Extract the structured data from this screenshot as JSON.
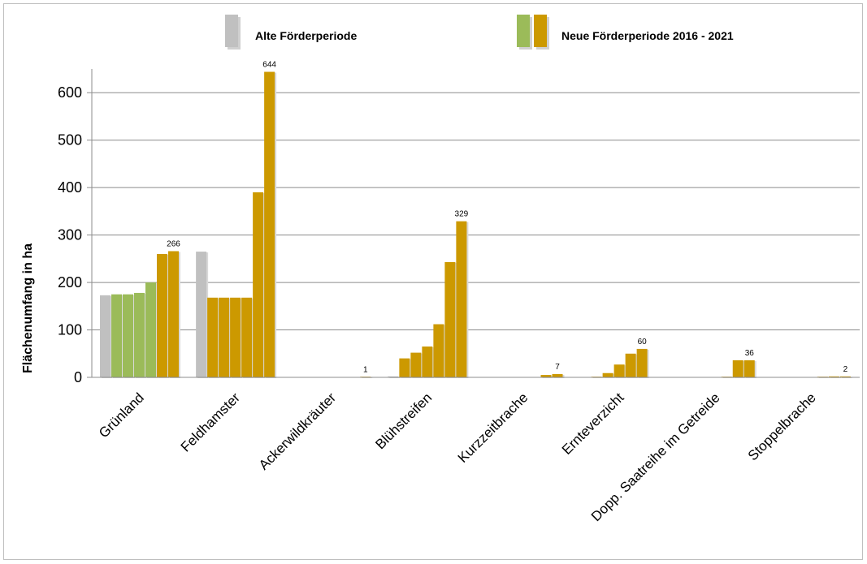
{
  "chart_data": {
    "type": "bar",
    "title": "",
    "ylabel": "Flächenumfang in ha",
    "xlabel": "",
    "ylim": [
      0,
      650
    ],
    "yticks": [
      0,
      100,
      200,
      300,
      400,
      500,
      600
    ],
    "grid": true,
    "legend_position": "top",
    "legend": [
      {
        "label": "Alte Förderperiode",
        "colors": [
          "#c0c0c0"
        ]
      },
      {
        "label": "Neue Förderperiode 2016 - 2021",
        "colors": [
          "#9bbb59",
          "#cc9900"
        ]
      }
    ],
    "colors": {
      "old": "#c0c0c0",
      "new_green": "#9bbb59",
      "new_gold": "#cc9900"
    },
    "categories": [
      {
        "name": "Grünland",
        "label": "266",
        "bars": [
          {
            "v": 173,
            "c": "old"
          },
          {
            "v": 175,
            "c": "new_green"
          },
          {
            "v": 175,
            "c": "new_green"
          },
          {
            "v": 178,
            "c": "new_green"
          },
          {
            "v": 200,
            "c": "new_green"
          },
          {
            "v": 260,
            "c": "new_gold"
          },
          {
            "v": 266,
            "c": "new_gold"
          }
        ]
      },
      {
        "name": "Feldhamster",
        "label": "644",
        "bars": [
          {
            "v": 265,
            "c": "old"
          },
          {
            "v": 168,
            "c": "new_gold"
          },
          {
            "v": 168,
            "c": "new_gold"
          },
          {
            "v": 168,
            "c": "new_gold"
          },
          {
            "v": 168,
            "c": "new_gold"
          },
          {
            "v": 390,
            "c": "new_gold"
          },
          {
            "v": 644,
            "c": "new_gold"
          }
        ]
      },
      {
        "name": "Ackerwildkräuter",
        "label": "1",
        "bars": [
          {
            "v": 0,
            "c": "old"
          },
          {
            "v": 0,
            "c": "new_gold"
          },
          {
            "v": 0,
            "c": "new_gold"
          },
          {
            "v": 0,
            "c": "new_gold"
          },
          {
            "v": 0,
            "c": "new_gold"
          },
          {
            "v": 0,
            "c": "new_gold"
          },
          {
            "v": 1,
            "c": "new_gold"
          }
        ]
      },
      {
        "name": "Blühstreifen",
        "label": "329",
        "bars": [
          {
            "v": 2,
            "c": "old"
          },
          {
            "v": 40,
            "c": "new_gold"
          },
          {
            "v": 52,
            "c": "new_gold"
          },
          {
            "v": 65,
            "c": "new_gold"
          },
          {
            "v": 112,
            "c": "new_gold"
          },
          {
            "v": 243,
            "c": "new_gold"
          },
          {
            "v": 329,
            "c": "new_gold"
          }
        ]
      },
      {
        "name": "Kurzzeitbrache",
        "label": "7",
        "bars": [
          {
            "v": 0,
            "c": "old"
          },
          {
            "v": 0,
            "c": "new_gold"
          },
          {
            "v": 0,
            "c": "new_gold"
          },
          {
            "v": 0,
            "c": "new_gold"
          },
          {
            "v": 0,
            "c": "new_gold"
          },
          {
            "v": 5,
            "c": "new_gold"
          },
          {
            "v": 7,
            "c": "new_gold"
          }
        ]
      },
      {
        "name": "Ernteverzicht",
        "label": "60",
        "bars": [
          {
            "v": 0,
            "c": "old"
          },
          {
            "v": 1,
            "c": "new_gold"
          },
          {
            "v": 9,
            "c": "new_gold"
          },
          {
            "v": 27,
            "c": "new_gold"
          },
          {
            "v": 50,
            "c": "new_gold"
          },
          {
            "v": 60,
            "c": "new_gold"
          },
          {
            "v": 0,
            "c": "new_gold"
          }
        ]
      },
      {
        "name": "Dopp. Saatreihe im Getreide",
        "label": "36",
        "bars": [
          {
            "v": 0,
            "c": "old"
          },
          {
            "v": 0,
            "c": "new_gold"
          },
          {
            "v": 0,
            "c": "new_gold"
          },
          {
            "v": 0,
            "c": "new_gold"
          },
          {
            "v": 1,
            "c": "new_gold"
          },
          {
            "v": 36,
            "c": "new_gold"
          },
          {
            "v": 36,
            "c": "new_gold"
          }
        ]
      },
      {
        "name": "Stoppelbrache",
        "label": "2",
        "bars": [
          {
            "v": 0,
            "c": "old"
          },
          {
            "v": 0,
            "c": "new_gold"
          },
          {
            "v": 0,
            "c": "new_gold"
          },
          {
            "v": 0,
            "c": "new_gold"
          },
          {
            "v": 1,
            "c": "new_gold"
          },
          {
            "v": 2,
            "c": "new_gold"
          },
          {
            "v": 2,
            "c": "new_gold"
          }
        ]
      }
    ]
  }
}
